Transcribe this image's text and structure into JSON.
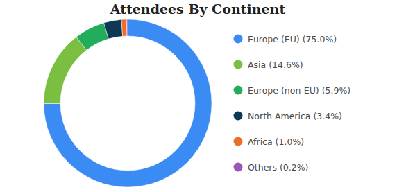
{
  "chart_data": {
    "type": "donut",
    "title": "Attendees By Continent",
    "categories": [
      "Europe (EU) (75.0%)",
      "Asia (14.6%)",
      "Europe (non-EU) (5.9%)",
      "North America (3.4%)",
      "Africa (1.0%)",
      "Others (0.2%)"
    ],
    "values": [
      75.0,
      14.6,
      5.9,
      3.4,
      1.0,
      0.2
    ],
    "colors": [
      "#3b8bf5",
      "#7abf41",
      "#22ad5c",
      "#0d3957",
      "#e8702a",
      "#9b55b5"
    ],
    "legend": "right"
  }
}
